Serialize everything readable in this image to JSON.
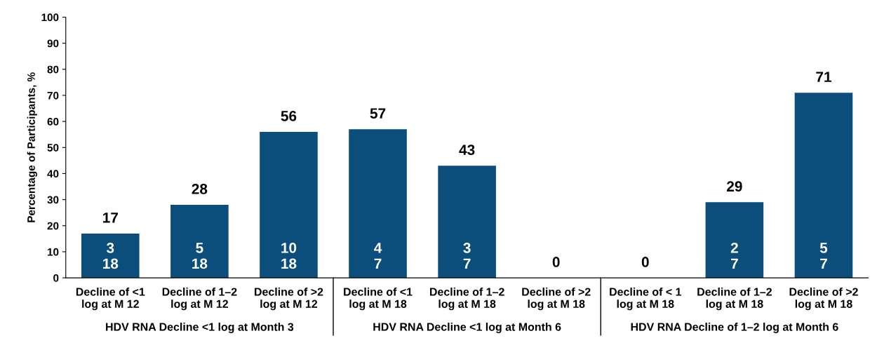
{
  "chart_data": {
    "type": "bar",
    "ylabel": "Percentage of Participants, %",
    "categories": [
      "Decline of <1\nlog at M 12",
      "Decline of 1–2\nlog at M 12",
      "Decline of >2\nlog at M 12",
      "Decline of <1\nlog at M 18",
      "Decline of 1–2\nlog at M 18",
      "Decline of >2\nlog at M 18",
      "Decline of < 1\nlog at M 18",
      "Decline of 1–2\nlog at M 18",
      "Decline of >2\nlog at M 18"
    ],
    "values": [
      17,
      28,
      56,
      57,
      43,
      0,
      0,
      29,
      71
    ],
    "color": "#0b4d7b",
    "data_labels": true,
    "ylim": [
      0,
      100
    ],
    "yticks": [
      0,
      10,
      20,
      30,
      40,
      50,
      60,
      70,
      80,
      90,
      100
    ],
    "grid": false,
    "legend": false,
    "annotations": [
      "HDV RNA Decline <1 log at Month 3",
      "HDV RNA Decline <1 log at Month 6",
      "HDV RNA Decline of 1–2 log at Month 6",
      "3\n18",
      "5\n18",
      "10\n18",
      "4\n7",
      "3\n7",
      "2\n7",
      "5\n7"
    ]
  }
}
